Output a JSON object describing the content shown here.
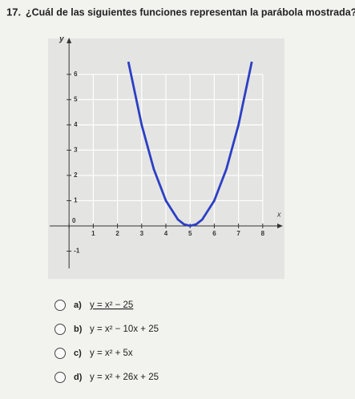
{
  "question": {
    "number": "17.",
    "text": "¿Cuál de las siguientes funciones representan la parábola mostrada?"
  },
  "graph": {
    "type": "line",
    "x_label": "x",
    "y_label": "y",
    "xlim": [
      -0.8,
      8.8
    ],
    "ylim": [
      -2,
      7.2
    ],
    "xticks": [
      0,
      1,
      2,
      3,
      4,
      5,
      6,
      7,
      8
    ],
    "yticks": [
      -1,
      1,
      2,
      3,
      4,
      5,
      6
    ],
    "grid": true,
    "color": "#2b3fc4",
    "curve": {
      "x": [
        2.45,
        3,
        3.5,
        4,
        4.5,
        4.75,
        5,
        5.25,
        5.5,
        6,
        6.5,
        7,
        7.55
      ],
      "y": [
        6.5,
        4,
        2.25,
        1,
        0.25,
        0.0625,
        0,
        0.0625,
        0.25,
        1,
        2.25,
        4,
        6.5
      ]
    }
  },
  "options": [
    {
      "label": "a)",
      "text": "y = x² − 25"
    },
    {
      "label": "b)",
      "text": "y = x² − 10x + 25"
    },
    {
      "label": "c)",
      "text": "y = x² + 5x"
    },
    {
      "label": "d)",
      "text": "y = x² + 26x + 25"
    }
  ]
}
